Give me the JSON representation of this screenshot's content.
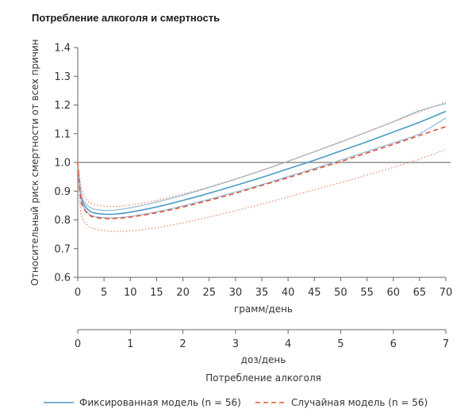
{
  "chart_data": {
    "type": "line",
    "title": "Потребление алкоголя и смертность",
    "ylabel": "Относительный риск смертности от всех причин",
    "xlabel": "грамм/день",
    "xlabel2": "доз/день",
    "xlabel_group": "Потребление алкоголя",
    "xlim": [
      0,
      70
    ],
    "ylim": [
      0.6,
      1.4
    ],
    "x_ticks": [
      "0",
      "5",
      "10",
      "15",
      "20",
      "25",
      "30",
      "35",
      "40",
      "45",
      "50",
      "55",
      "60",
      "65",
      "70"
    ],
    "y_ticks": [
      "0.6",
      "0.7",
      "0.8",
      "0.9",
      "1.0",
      "1.1",
      "1.2",
      "1.3",
      "1.4"
    ],
    "x2_ticks": [
      "0",
      "1",
      "2",
      "3",
      "4",
      "5",
      "6",
      "7"
    ],
    "x2_lim": [
      0,
      7
    ],
    "reference_line": 1.0,
    "grid": false,
    "legend_position": "bottom",
    "series": [
      {
        "name": "Фиксированная модель (n = 56)",
        "style": "solid",
        "color": "#4a9bc4",
        "role": "estimate",
        "x": [
          0,
          0.5,
          1,
          2,
          3,
          5,
          7,
          10,
          15,
          20,
          25,
          30,
          35,
          40,
          45,
          50,
          55,
          60,
          65,
          70
        ],
        "y": [
          1.0,
          0.9,
          0.86,
          0.835,
          0.825,
          0.82,
          0.82,
          0.827,
          0.845,
          0.868,
          0.893,
          0.92,
          0.948,
          0.978,
          1.008,
          1.04,
          1.072,
          1.106,
          1.14,
          1.178
        ]
      },
      {
        "name": "",
        "style": "solid",
        "color": "#93b9d4",
        "role": "ci-upper",
        "x": [
          0,
          0.5,
          1,
          2,
          3,
          5,
          7,
          10,
          15,
          20,
          25,
          30,
          35,
          40,
          45,
          50,
          55,
          60,
          65,
          70
        ],
        "y": [
          1.0,
          0.91,
          0.87,
          0.848,
          0.838,
          0.833,
          0.834,
          0.842,
          0.862,
          0.886,
          0.913,
          0.942,
          0.972,
          1.004,
          1.037,
          1.071,
          1.106,
          1.142,
          1.18,
          1.205
        ]
      },
      {
        "name": "",
        "style": "solid",
        "color": "#93b9d4",
        "role": "ci-lower",
        "x": [
          0,
          0.5,
          1,
          2,
          3,
          5,
          7,
          10,
          15,
          20,
          25,
          30,
          35,
          40,
          45,
          50,
          55,
          60,
          65,
          70
        ],
        "y": [
          1.0,
          0.89,
          0.85,
          0.823,
          0.813,
          0.808,
          0.807,
          0.812,
          0.828,
          0.849,
          0.872,
          0.897,
          0.923,
          0.951,
          0.979,
          1.008,
          1.038,
          1.068,
          1.1,
          1.155
        ]
      },
      {
        "name": "Случайная модель (n = 56)",
        "style": "dashed",
        "color": "#e0533a",
        "role": "estimate",
        "x": [
          0,
          0.5,
          1,
          2,
          3,
          5,
          7,
          10,
          15,
          20,
          25,
          30,
          35,
          40,
          45,
          50,
          55,
          60,
          65,
          70
        ],
        "y": [
          1.0,
          0.88,
          0.845,
          0.82,
          0.81,
          0.805,
          0.805,
          0.81,
          0.825,
          0.845,
          0.868,
          0.893,
          0.92,
          0.947,
          0.975,
          1.003,
          1.033,
          1.063,
          1.094,
          1.125
        ]
      },
      {
        "name": "",
        "style": "dotted",
        "color": "#e98a6e",
        "role": "ci-upper",
        "x": [
          0,
          0.5,
          1,
          2,
          3,
          5,
          7,
          10,
          15,
          20,
          25,
          30,
          35,
          40,
          45,
          50,
          55,
          60,
          65,
          70
        ],
        "y": [
          1.0,
          0.93,
          0.89,
          0.865,
          0.855,
          0.848,
          0.847,
          0.852,
          0.868,
          0.89,
          0.915,
          0.943,
          0.973,
          1.005,
          1.038,
          1.072,
          1.106,
          1.141,
          1.176,
          1.21
        ]
      },
      {
        "name": "",
        "style": "dotted",
        "color": "#e98a6e",
        "role": "ci-lower",
        "x": [
          0,
          0.5,
          1,
          2,
          3,
          5,
          7,
          10,
          15,
          20,
          25,
          30,
          35,
          40,
          45,
          50,
          55,
          60,
          65,
          70
        ],
        "y": [
          1.0,
          0.84,
          0.8,
          0.78,
          0.77,
          0.763,
          0.76,
          0.762,
          0.773,
          0.79,
          0.81,
          0.832,
          0.855,
          0.88,
          0.905,
          0.93,
          0.956,
          0.983,
          1.012,
          1.045
        ]
      }
    ]
  }
}
